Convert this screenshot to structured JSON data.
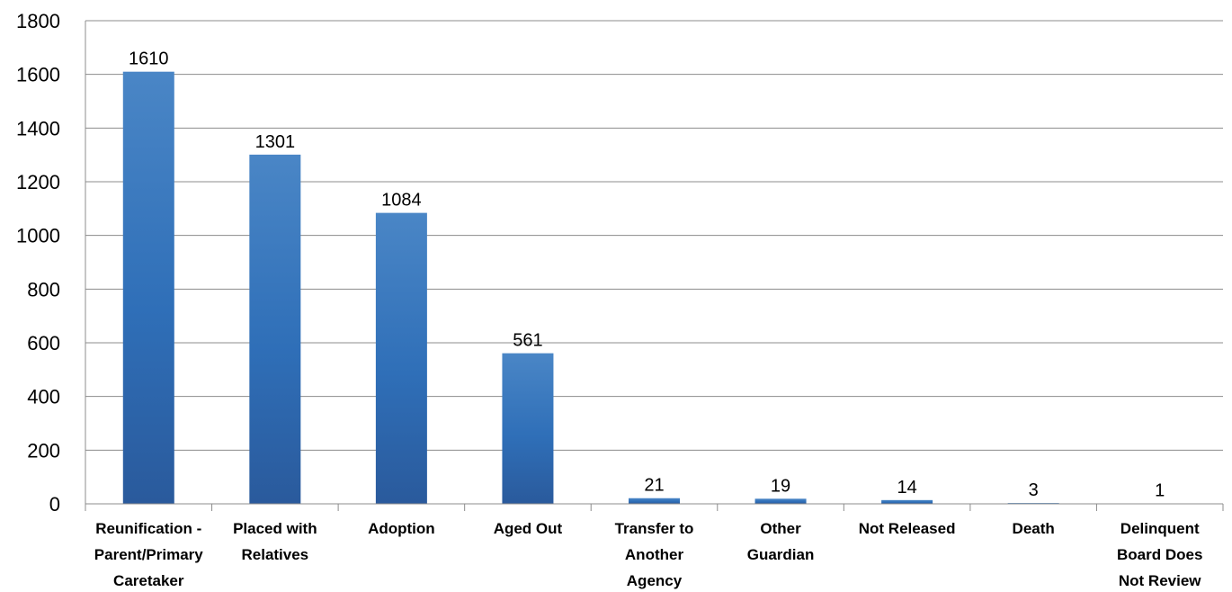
{
  "chart_data": {
    "type": "bar",
    "categories": [
      "Reunification - Parent/Primary Caretaker",
      "Placed with Relatives",
      "Adoption",
      "Aged Out",
      "Transfer to Another Agency",
      "Other Guardian",
      "Not Released",
      "Death",
      "Delinquent Board Does Not Review"
    ],
    "category_lines": [
      [
        "Reunification -",
        "Parent/Primary",
        "Caretaker"
      ],
      [
        "Placed with",
        "Relatives"
      ],
      [
        "Adoption"
      ],
      [
        "Aged Out"
      ],
      [
        "Transfer to",
        "Another",
        "Agency"
      ],
      [
        "Other",
        "Guardian"
      ],
      [
        "Not Released"
      ],
      [
        "Death"
      ],
      [
        "Delinquent",
        "Board Does",
        "Not Review"
      ]
    ],
    "values": [
      1610,
      1301,
      1084,
      561,
      21,
      19,
      14,
      3,
      1
    ],
    "data_labels": [
      "1610",
      "1301",
      "1084",
      "561",
      "21",
      "19",
      "14",
      "3",
      "1"
    ],
    "ylim": [
      0,
      1800
    ],
    "yticks": [
      "0",
      "200",
      "400",
      "600",
      "800",
      "1000",
      "1200",
      "1400",
      "1600",
      "1800"
    ],
    "grid": true,
    "legend": "none",
    "title": "",
    "xlabel": "",
    "ylabel": "",
    "colors": {
      "bar_top": "#4a86c6",
      "bar_bottom": "#2a5a9c",
      "grid": "#8c8c8c",
      "axis": "#8c8c8c"
    }
  }
}
